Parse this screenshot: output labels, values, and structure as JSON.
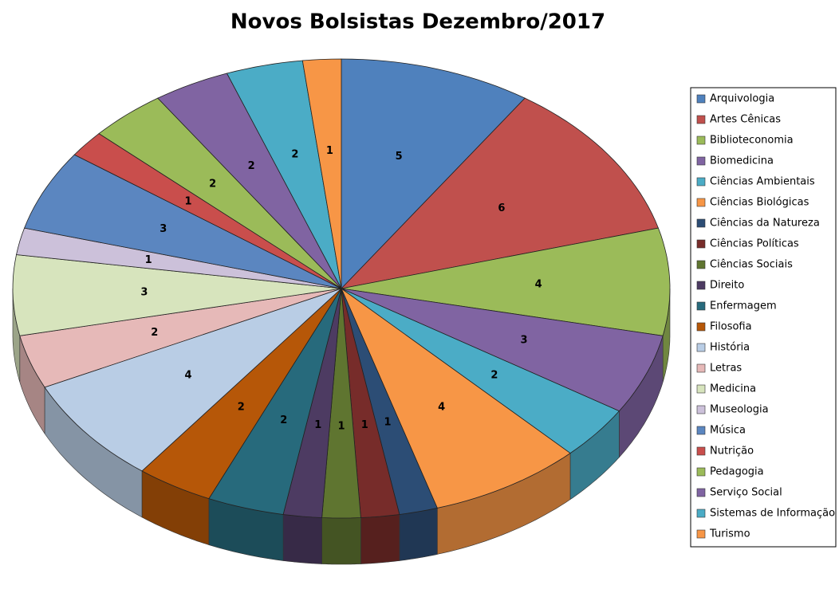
{
  "chart_data": {
    "type": "pie",
    "title": "Novos Bolsistas Dezembro/2017",
    "categories": [
      "Arquivologia",
      "Artes Cênicas",
      "Biblioteconomia",
      "Biomedicina",
      "Ciências Ambientais",
      "Ciências Biológicas",
      "Ciências da Natureza",
      "Ciências Políticas",
      "Ciências Sociais",
      "Direito",
      "Enfermagem",
      "Filosofia",
      "História",
      "Letras",
      "Medicina",
      "Museologia",
      "Música",
      "Nutrição",
      "Pedagogia",
      "Serviço Social",
      "Sistemas de Informação",
      "Turismo"
    ],
    "values": [
      5,
      6,
      4,
      3,
      2,
      4,
      1,
      1,
      1,
      1,
      2,
      2,
      4,
      2,
      3,
      1,
      3,
      1,
      2,
      2,
      2,
      1
    ],
    "colors": [
      "#4F81BD",
      "#C0504D",
      "#9BBB59",
      "#8064A2",
      "#4BACC6",
      "#F79646",
      "#2C4D75",
      "#772C2A",
      "#5F7530",
      "#4D3B62",
      "#276A7C",
      "#B65708",
      "#B9CDE5",
      "#E6B9B8",
      "#D7E4BD",
      "#CCC1DA",
      "#5B86C0",
      "#C94E4C",
      "#9BBB59",
      "#8064A2",
      "#4BACC6",
      "#F79646"
    ],
    "legend": "right"
  }
}
